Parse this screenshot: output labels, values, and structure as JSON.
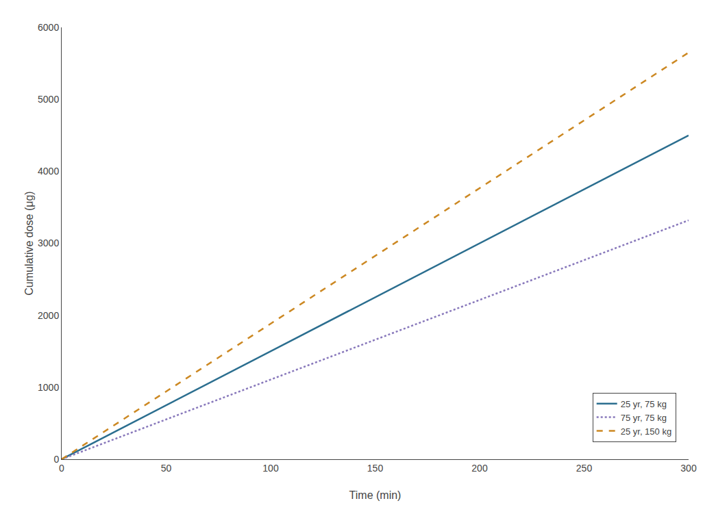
{
  "chart_data": {
    "type": "line",
    "xlabel": "Time (min)",
    "ylabel": "Cumulative dose (μg)",
    "x": [
      0,
      300
    ],
    "series": [
      {
        "name": "25 yr, 75 kg",
        "color": "#2b6e8f",
        "line_style": "solid",
        "values": [
          0,
          4500
        ]
      },
      {
        "name": "75 yr, 75 kg",
        "color": "#8878bb",
        "line_style": "dotted",
        "values": [
          0,
          3320
        ]
      },
      {
        "name": "25 yr, 150 kg",
        "color": "#cc8822",
        "line_style": "dashed",
        "values": [
          0,
          5650
        ]
      }
    ],
    "xlim": [
      0,
      300
    ],
    "ylim": [
      0,
      6000
    ],
    "xticks": [
      0,
      50,
      100,
      150,
      200,
      250,
      300
    ],
    "yticks": [
      0,
      1000,
      2000,
      3000,
      4000,
      5000,
      6000
    ],
    "grid": false,
    "legend": "lower right"
  }
}
